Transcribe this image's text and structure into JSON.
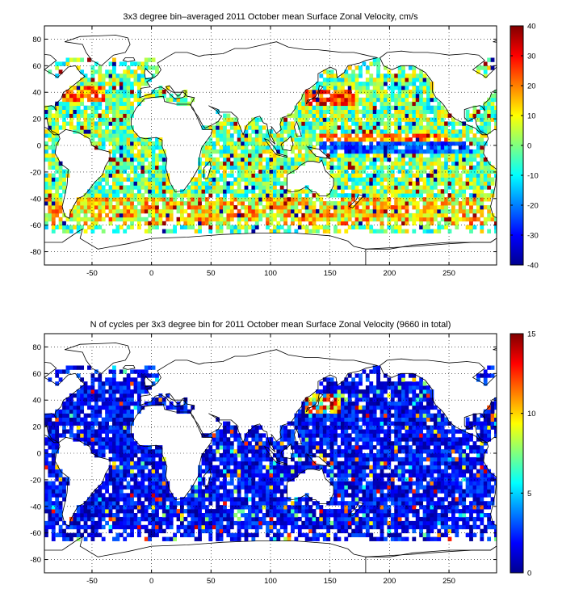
{
  "chart_data": [
    {
      "type": "heatmap",
      "title": "3x3 degree bin–averaged 2011 October mean Surface Zonal Velocity, cm/s",
      "xlim": [
        -90,
        290
      ],
      "ylim": [
        -90,
        90
      ],
      "x_ticks": [
        "-50",
        "0",
        "50",
        "100",
        "150",
        "200",
        "250"
      ],
      "y_ticks": [
        "80",
        "60",
        "40",
        "20",
        "0",
        "-20",
        "-40",
        "-60",
        "-80"
      ],
      "grid": "dotted",
      "bin_size_deg": 3,
      "colorbar": {
        "colormap": "jet",
        "range": [
          -40,
          40
        ],
        "ticks": [
          "40",
          "30",
          "20",
          "10",
          "0",
          "-10",
          "-20",
          "-30",
          "-40"
        ]
      }
    },
    {
      "type": "heatmap",
      "title": "N of cycles per 3x3 degree bin for 2011 October mean Surface Zonal Velocity (9660 in total)",
      "xlim": [
        -90,
        290
      ],
      "ylim": [
        -90,
        90
      ],
      "x_ticks": [
        "-50",
        "0",
        "50",
        "100",
        "150",
        "200",
        "250"
      ],
      "y_ticks": [
        "80",
        "60",
        "40",
        "20",
        "0",
        "-20",
        "-40",
        "-60",
        "-80"
      ],
      "grid": "dotted",
      "bin_size_deg": 3,
      "colorbar": {
        "colormap": "jet",
        "range": [
          0,
          15
        ],
        "ticks": [
          "15",
          "10",
          "5",
          "0"
        ]
      }
    }
  ]
}
